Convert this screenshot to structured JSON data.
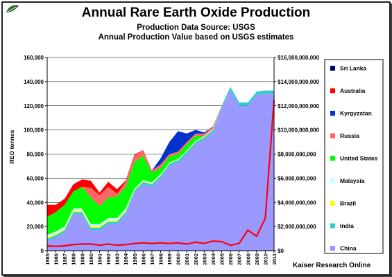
{
  "header": {
    "title": "Annual Rare Earth Oxide Production",
    "subtitle1": "Production Data Source: USGS",
    "subtitle2": "Annual Production Value based on USGS estimates"
  },
  "footer": {
    "credit": "Kaiser Research Online"
  },
  "logo": {
    "icon": "leaf-logo-icon",
    "color": "#2e6b2e"
  },
  "chart_data": {
    "type": "area",
    "x": [
      1985,
      1986,
      1987,
      1988,
      1989,
      1990,
      1991,
      1992,
      1993,
      1994,
      1995,
      1996,
      1997,
      1998,
      1999,
      2000,
      2001,
      2002,
      2003,
      2004,
      2005,
      2006,
      2007,
      2008,
      2009,
      2010,
      2011
    ],
    "xticks": [
      "1985",
      "1986",
      "1987",
      "1988",
      "1989",
      "1990",
      "1991",
      "1992",
      "1993",
      "1994",
      "1995",
      "1996",
      "1997",
      "1998",
      "1999",
      "2000",
      "2001",
      "2002",
      "2003",
      "2004",
      "2005",
      "2006",
      "2007",
      "2008",
      "2009",
      "2010",
      "2011"
    ],
    "ylabel": "REO tonnes",
    "ylim": [
      0,
      160000
    ],
    "yticks": [
      "0",
      "20,000",
      "40,000",
      "60,000",
      "80,000",
      "100,000",
      "120,000",
      "140,000",
      "160,000"
    ],
    "y2lim": [
      0,
      16000000000
    ],
    "y2ticks": [
      "$0",
      "$2,000,000,000",
      "$4,000,000,000",
      "$6,000,000,000",
      "$8,000,000,000",
      "$10,000,000,000",
      "$12,000,000,000",
      "$14,000,000,000",
      "$16,000,000,000"
    ],
    "grid": true,
    "legend_position": "right",
    "stacked_series": [
      {
        "name": "China",
        "color": "#9999ff",
        "values": [
          8000,
          11000,
          15000,
          30000,
          30000,
          17000,
          17000,
          22000,
          22000,
          30000,
          48000,
          55000,
          53000,
          60000,
          70000,
          73000,
          80000,
          88000,
          92000,
          98000,
          119000,
          133000,
          120000,
          120000,
          129000,
          130000,
          130000
        ]
      },
      {
        "name": "India",
        "color": "#33cccc",
        "values": [
          2000,
          2000,
          2000,
          2000,
          2000,
          2000,
          2000,
          2000,
          2000,
          2000,
          2000,
          2000,
          2000,
          2000,
          2000,
          2000,
          2000,
          2000,
          2000,
          2000,
          1000,
          2700,
          2700,
          2700,
          2700,
          2700,
          2700
        ]
      },
      {
        "name": "Brazil",
        "color": "#ffff00",
        "values": [
          1000,
          1000,
          1000,
          1000,
          1000,
          1000,
          1000,
          1000,
          1000,
          1000,
          500,
          500,
          500,
          500,
          500,
          500,
          500,
          500,
          500,
          500,
          0,
          0,
          0,
          0,
          0,
          0,
          0
        ]
      },
      {
        "name": "Malaysia",
        "color": "#ccffff",
        "values": [
          2000,
          2000,
          2000,
          2000,
          2000,
          2000,
          2000,
          2000,
          2000,
          2000,
          1000,
          1000,
          1000,
          1000,
          500,
          500,
          500,
          500,
          500,
          500,
          0,
          0,
          0,
          0,
          0,
          0,
          0
        ]
      },
      {
        "name": "United States",
        "color": "#00ff00",
        "values": [
          15000,
          16000,
          18000,
          14000,
          18000,
          22000,
          15000,
          17000,
          18000,
          18000,
          22000,
          20000,
          8000,
          5000,
          5000,
          4000,
          5000,
          4000,
          0,
          0,
          0,
          0,
          0,
          0,
          0,
          0,
          0
        ]
      },
      {
        "name": "Russia",
        "color": "#ff6666",
        "values": [
          0,
          0,
          0,
          0,
          0,
          8000,
          9000,
          9000,
          2000,
          4000,
          5000,
          5000,
          2000,
          3000,
          2000,
          2000,
          2000,
          2000,
          2000,
          2000,
          0,
          0,
          0,
          0,
          0,
          0,
          0
        ]
      },
      {
        "name": "Kyrgyzstan",
        "color": "#0033cc",
        "values": [
          0,
          0,
          0,
          0,
          0,
          0,
          0,
          0,
          0,
          0,
          0,
          0,
          0,
          5000,
          10000,
          17000,
          7000,
          3000,
          1000,
          0,
          0,
          0,
          0,
          0,
          0,
          0,
          0
        ]
      },
      {
        "name": "Australia",
        "color": "#ff0000",
        "values": [
          10000,
          6000,
          5000,
          6000,
          6000,
          6000,
          2000,
          4000,
          4000,
          1000,
          1000,
          0,
          0,
          0,
          0,
          0,
          0,
          0,
          0,
          0,
          0,
          0,
          0,
          0,
          0,
          0,
          0
        ]
      },
      {
        "name": "Sri Lanka",
        "color": "#000066",
        "values": [
          0,
          0,
          0,
          0,
          0,
          0,
          0,
          0,
          0,
          0,
          0,
          0,
          0,
          0,
          0,
          0,
          0,
          0,
          0,
          0,
          0,
          0,
          0,
          0,
          0,
          0,
          0
        ]
      }
    ],
    "value_line": {
      "color": "#ff0000",
      "axis": "secondary",
      "values": [
        400000000,
        350000000,
        400000000,
        500000000,
        550000000,
        550000000,
        450000000,
        550000000,
        450000000,
        500000000,
        600000000,
        650000000,
        600000000,
        650000000,
        600000000,
        650000000,
        550000000,
        700000000,
        600000000,
        800000000,
        750000000,
        450000000,
        600000000,
        1700000000,
        1200000000,
        2700000000,
        12500000000
      ]
    },
    "legend": [
      "Sri Lanka",
      "Australia",
      "Kyrgyzstan",
      "Russia",
      "United States",
      "Malaysia",
      "Brazil",
      "India",
      "China"
    ]
  }
}
